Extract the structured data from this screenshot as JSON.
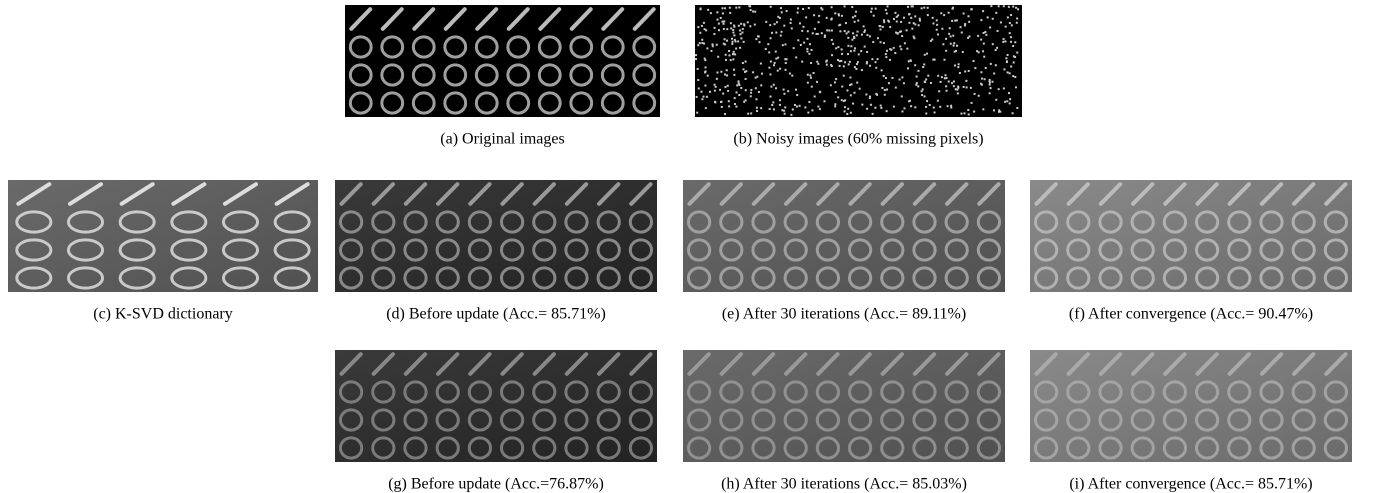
{
  "figure": {
    "panels": [
      {
        "caption": "(a) Original images"
      },
      {
        "caption": "(b) Noisy images (60% missing pixels)"
      },
      {
        "caption": "(c) K-SVD dictionary"
      },
      {
        "caption": "(d) Before update (Acc.= 85.71%)"
      },
      {
        "caption": "(e) After 30 iterations (Acc.= 89.11%)"
      },
      {
        "caption": "(f) After convergence (Acc.= 90.47%)"
      },
      {
        "caption": "(g) Before update (Acc.=76.87%)"
      },
      {
        "caption": "(h) After 30 iterations (Acc.= 85.03%)"
      },
      {
        "caption": "(i) After convergence (Acc.= 85.71%)"
      }
    ]
  }
}
